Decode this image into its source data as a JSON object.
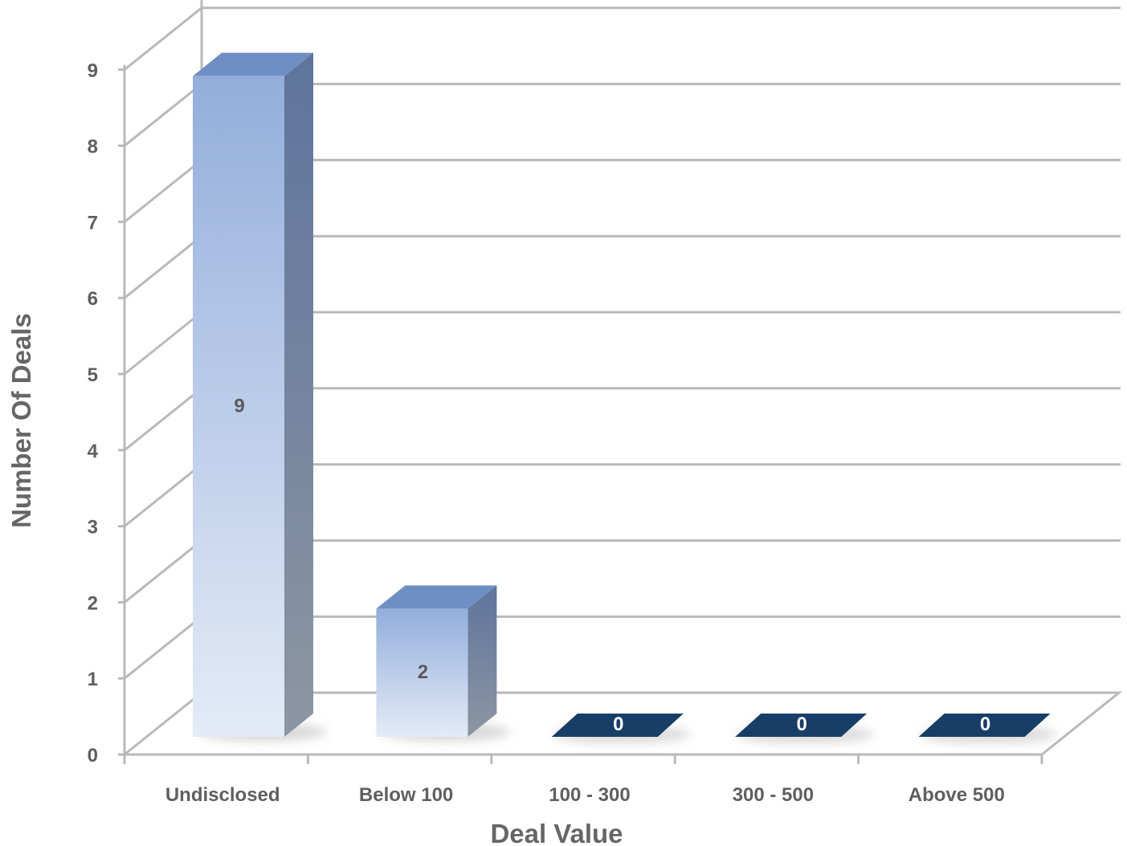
{
  "chart_data": {
    "type": "bar",
    "categories": [
      "Undisclosed",
      "Below 100",
      "100 - 300",
      "300 - 500",
      "Above 500"
    ],
    "values": [
      9,
      2,
      0,
      0,
      0
    ],
    "data_labels": [
      "9",
      "2",
      "0",
      "0",
      "0"
    ],
    "xlabel": "Deal Value",
    "ylabel": "Number Of Deals",
    "ylim": [
      0,
      9
    ],
    "yticks": [
      "0",
      "1",
      "2",
      "3",
      "4",
      "5",
      "6",
      "7",
      "8",
      "9"
    ],
    "grid": true,
    "legend": "none",
    "style": "3d-column",
    "colors": {
      "bar_top": "#6f8fc4",
      "bar_side_top": "#5d749c",
      "bar_side_bottom": "#8d96a3",
      "bar_front_top": "#93aedb",
      "bar_front_bottom": "#e4ebf7",
      "zero_bar": "#173e66",
      "grid": "#b9b9b9",
      "text": "#5f5f5f"
    }
  }
}
